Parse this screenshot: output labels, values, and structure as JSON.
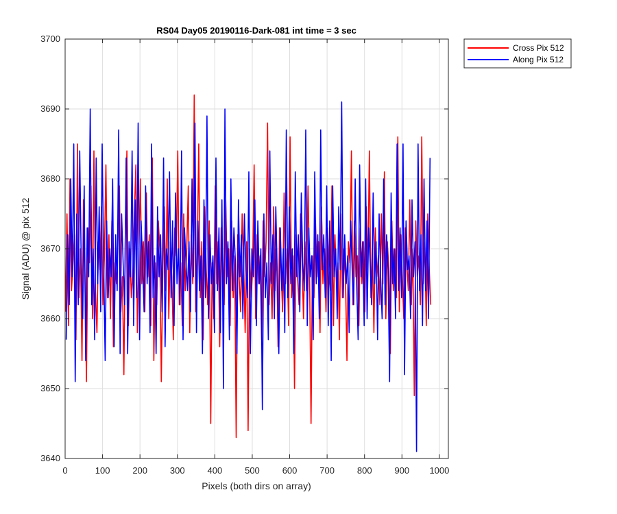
{
  "chart_data": {
    "type": "line",
    "title": "RS04 Day05 20190116-Dark-081 int time = 3 sec",
    "xlabel": "Pixels (both dirs on array)",
    "ylabel": "Signal (ADU) @ pix 512",
    "xlim": [
      0,
      1024
    ],
    "ylim": [
      3640,
      3700
    ],
    "xticks": [
      0,
      100,
      200,
      300,
      400,
      500,
      600,
      700,
      800,
      900,
      1000
    ],
    "yticks": [
      3640,
      3650,
      3660,
      3670,
      3680,
      3690,
      3700
    ],
    "xtick_labels": [
      "0",
      "100",
      "200",
      "300",
      "400",
      "500",
      "600",
      "700",
      "800",
      "900",
      "1000"
    ],
    "ytick_labels": [
      "3640",
      "3650",
      "3660",
      "3670",
      "3680",
      "3690",
      "3700"
    ],
    "grid": true,
    "legend_position": "outside-top-right",
    "series": [
      {
        "name": "Cross Pix 512",
        "color": "#ff0000",
        "x_start": 1,
        "x_step": 4,
        "values": [
          3661,
          3675,
          3659,
          3680,
          3664,
          3668,
          3672,
          3657,
          3685,
          3663,
          3670,
          3654,
          3677,
          3666,
          3651,
          3673,
          3668,
          3679,
          3660,
          3684,
          3664,
          3658,
          3671,
          3667,
          3676,
          3662,
          3669,
          3682,
          3663,
          3672,
          3660,
          3674,
          3656,
          3668,
          3665,
          3671,
          3679,
          3661,
          3666,
          3652,
          3673,
          3684,
          3659,
          3670,
          3663,
          3667,
          3675,
          3682,
          3658,
          3669,
          3680,
          3665,
          3671,
          3661,
          3678,
          3666,
          3672,
          3659,
          3683,
          3654,
          3668,
          3662,
          3674,
          3670,
          3651,
          3667,
          3676,
          3664,
          3680,
          3660,
          3671,
          3666,
          3657,
          3673,
          3669,
          3684,
          3662,
          3668,
          3659,
          3675,
          3664,
          3670,
          3679,
          3658,
          3672,
          3665,
          3692,
          3661,
          3669,
          3685,
          3663,
          3671,
          3657,
          3676,
          3667,
          3662,
          3674,
          3645,
          3668,
          3660,
          3679,
          3665,
          3671,
          3656,
          3673,
          3668,
          3662,
          3677,
          3666,
          3670,
          3659,
          3674,
          3663,
          3669,
          3643,
          3672,
          3666,
          3661,
          3675,
          3668,
          3658,
          3671,
          3644,
          3670,
          3663,
          3667,
          3682,
          3660,
          3672,
          3665,
          3669,
          3657,
          3674,
          3666,
          3671,
          3688,
          3662,
          3668,
          3660,
          3676,
          3664,
          3670,
          3656,
          3673,
          3667,
          3661,
          3678,
          3665,
          3670,
          3659,
          3686,
          3663,
          3669,
          3650,
          3672,
          3666,
          3662,
          3675,
          3668,
          3660,
          3671,
          3664,
          3679,
          3667,
          3645,
          3669,
          3663,
          3674,
          3666,
          3671,
          3658,
          3676,
          3665,
          3670,
          3661,
          3673,
          3667,
          3664,
          3679,
          3659,
          3672,
          3665,
          3668,
          3657,
          3675,
          3663,
          3670,
          3666,
          3654,
          3671,
          3668,
          3684,
          3662,
          3674,
          3666,
          3669,
          3659,
          3673,
          3665,
          3671,
          3661,
          3676,
          3667,
          3684,
          3663,
          3670,
          3658,
          3673,
          3666,
          3669,
          3662,
          3675,
          3665,
          3681,
          3660,
          3671,
          3667,
          3655,
          3674,
          3664,
          3670,
          3663,
          3686,
          3661,
          3672,
          3666,
          3660,
          3673,
          3668,
          3664,
          3677,
          3662,
          3670,
          3649,
          3674,
          3666,
          3669,
          3662,
          3686,
          3665,
          3671,
          3659,
          3675,
          3667,
          3662
        ]
      },
      {
        "name": "Along Pix 512",
        "color": "#0000ff",
        "x_start": 3,
        "x_step": 4,
        "values": [
          3657,
          3672,
          3662,
          3680,
          3666,
          3685,
          3651,
          3675,
          3662,
          3684,
          3668,
          3660,
          3679,
          3654,
          3673,
          3666,
          3690,
          3662,
          3670,
          3657,
          3683,
          3665,
          3676,
          3661,
          3685,
          3668,
          3654,
          3674,
          3663,
          3670,
          3666,
          3680,
          3656,
          3672,
          3664,
          3687,
          3655,
          3675,
          3668,
          3662,
          3683,
          3655,
          3671,
          3666,
          3684,
          3659,
          3677,
          3663,
          3688,
          3657,
          3674,
          3668,
          3661,
          3679,
          3665,
          3671,
          3658,
          3685,
          3663,
          3669,
          3655,
          3676,
          3666,
          3672,
          3661,
          3683,
          3656,
          3670,
          3667,
          3681,
          3663,
          3674,
          3659,
          3678,
          3665,
          3670,
          3662,
          3684,
          3657,
          3673,
          3668,
          3664,
          3671,
          3661,
          3680,
          3666,
          3688,
          3658,
          3674,
          3664,
          3669,
          3655,
          3677,
          3663,
          3689,
          3660,
          3672,
          3665,
          3669,
          3658,
          3683,
          3664,
          3673,
          3658,
          3677,
          3650,
          3690,
          3665,
          3671,
          3657,
          3680,
          3664,
          3673,
          3668,
          3655,
          3677,
          3666,
          3672,
          3660,
          3675,
          3667,
          3663,
          3681,
          3655,
          3670,
          3666,
          3677,
          3659,
          3674,
          3665,
          3670,
          3647,
          3675,
          3663,
          3668,
          3657,
          3684,
          3665,
          3672,
          3660,
          3676,
          3666,
          3655,
          3673,
          3664,
          3670,
          3658,
          3687,
          3663,
          3676,
          3665,
          3670,
          3655,
          3681,
          3666,
          3672,
          3661,
          3678,
          3668,
          3664,
          3687,
          3659,
          3673,
          3666,
          3669,
          3657,
          3681,
          3665,
          3672,
          3660,
          3687,
          3667,
          3672,
          3663,
          3679,
          3659,
          3674,
          3654,
          3679,
          3666,
          3670,
          3660,
          3676,
          3667,
          3691,
          3663,
          3672,
          3665,
          3669,
          3658,
          3674,
          3667,
          3662,
          3680,
          3665,
          3657,
          3682,
          3666,
          3671,
          3659,
          3680,
          3660,
          3673,
          3668,
          3662,
          3678,
          3665,
          3671,
          3657,
          3675,
          3666,
          3660,
          3680,
          3662,
          3672,
          3667,
          3651,
          3678,
          3665,
          3670,
          3660,
          3685,
          3664,
          3673,
          3663,
          3685,
          3652,
          3674,
          3667,
          3669,
          3660,
          3677,
          3666,
          3671,
          3641,
          3685,
          3664,
          3672,
          3659,
          3680,
          3664,
          3674,
          3660,
          3683
        ]
      }
    ]
  }
}
